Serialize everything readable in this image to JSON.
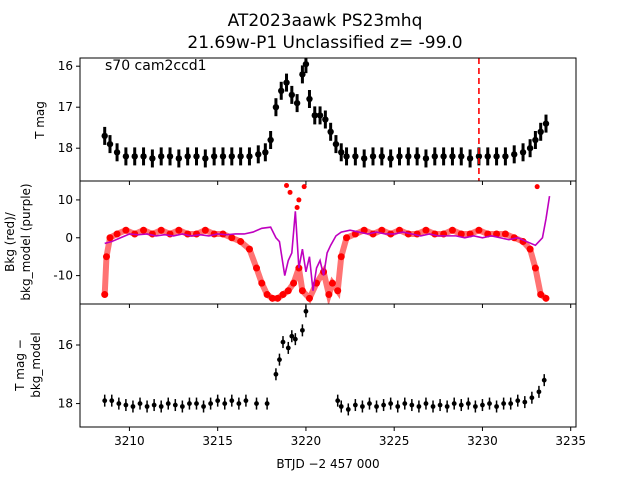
{
  "title_line1": "AT2023aawk  PS23mhq",
  "title_line2": "21.69w-P1 Unclassified z= -99.0",
  "chart_data": [
    {
      "type": "scatter",
      "panel": "top",
      "annotation": "s70 cam2ccd1",
      "ylabel": "T mag",
      "ylim": [
        18.8,
        15.8
      ],
      "xlim": [
        3207.2,
        3235.3
      ],
      "yticks": [
        16,
        17,
        18
      ],
      "vline_x": 3229.8,
      "vline_color": "#ff0000",
      "point_color": "#000000",
      "series": [
        {
          "values": [
            [
              3208.6,
              17.7
            ],
            [
              3208.9,
              17.9
            ],
            [
              3209.3,
              18.1
            ],
            [
              3209.8,
              18.2
            ],
            [
              3210.3,
              18.2
            ],
            [
              3210.8,
              18.2
            ],
            [
              3211.3,
              18.25
            ],
            [
              3211.8,
              18.2
            ],
            [
              3212.3,
              18.2
            ],
            [
              3212.8,
              18.25
            ],
            [
              3213.3,
              18.2
            ],
            [
              3213.8,
              18.2
            ],
            [
              3214.3,
              18.25
            ],
            [
              3214.8,
              18.2
            ],
            [
              3215.3,
              18.2
            ],
            [
              3215.8,
              18.2
            ],
            [
              3216.3,
              18.2
            ],
            [
              3216.8,
              18.2
            ],
            [
              3217.3,
              18.15
            ],
            [
              3217.7,
              18.1
            ],
            [
              3218.0,
              17.8
            ],
            [
              3218.3,
              17.0
            ],
            [
              3218.6,
              16.6
            ],
            [
              3218.9,
              16.4
            ],
            [
              3219.2,
              16.7
            ],
            [
              3219.5,
              16.9
            ],
            [
              3219.8,
              16.2
            ],
            [
              3220.0,
              15.95
            ],
            [
              3220.2,
              16.8
            ],
            [
              3220.5,
              17.2
            ],
            [
              3220.8,
              17.2
            ],
            [
              3221.1,
              17.3
            ],
            [
              3221.4,
              17.6
            ],
            [
              3221.7,
              17.9
            ],
            [
              3222.0,
              18.1
            ],
            [
              3222.3,
              18.2
            ],
            [
              3222.8,
              18.2
            ],
            [
              3223.3,
              18.25
            ],
            [
              3223.8,
              18.2
            ],
            [
              3224.3,
              18.2
            ],
            [
              3224.8,
              18.25
            ],
            [
              3225.3,
              18.2
            ],
            [
              3225.8,
              18.2
            ],
            [
              3226.3,
              18.2
            ],
            [
              3226.8,
              18.25
            ],
            [
              3227.3,
              18.2
            ],
            [
              3227.8,
              18.2
            ],
            [
              3228.3,
              18.2
            ],
            [
              3228.8,
              18.2
            ],
            [
              3229.3,
              18.25
            ],
            [
              3229.8,
              18.2
            ],
            [
              3230.3,
              18.2
            ],
            [
              3230.8,
              18.2
            ],
            [
              3231.3,
              18.2
            ],
            [
              3231.8,
              18.15
            ],
            [
              3232.3,
              18.1
            ],
            [
              3232.7,
              18.0
            ],
            [
              3233.0,
              17.8
            ],
            [
              3233.3,
              17.6
            ],
            [
              3233.6,
              17.4
            ]
          ]
        }
      ]
    },
    {
      "type": "line",
      "panel": "middle",
      "ylabel": "Bkg (red)/\nbkg_model (purple)",
      "ylim": [
        -17.5,
        15
      ],
      "xlim": [
        3207.2,
        3235.3
      ],
      "yticks": [
        -10,
        0,
        10
      ],
      "series": [
        {
          "color": "#ff0000",
          "values": [
            [
              3208.6,
              -15
            ],
            [
              3208.7,
              -5
            ],
            [
              3208.9,
              0
            ],
            [
              3209.3,
              1
            ],
            [
              3209.8,
              2
            ],
            [
              3210.3,
              1
            ],
            [
              3210.8,
              2
            ],
            [
              3211.3,
              1
            ],
            [
              3211.8,
              2
            ],
            [
              3212.3,
              1
            ],
            [
              3212.8,
              2
            ],
            [
              3213.3,
              1
            ],
            [
              3213.8,
              1
            ],
            [
              3214.3,
              2
            ],
            [
              3214.8,
              1
            ],
            [
              3215.3,
              1
            ],
            [
              3215.8,
              0
            ],
            [
              3216.3,
              -1
            ],
            [
              3216.8,
              -3
            ],
            [
              3217.2,
              -8
            ],
            [
              3217.5,
              -12
            ],
            [
              3217.8,
              -15
            ],
            [
              3218.1,
              -16
            ],
            [
              3218.4,
              -16
            ],
            [
              3218.7,
              -15
            ],
            [
              3219.0,
              -14
            ],
            [
              3219.3,
              -12
            ],
            [
              3219.6,
              -8
            ],
            [
              3219.8,
              -14
            ],
            [
              3220.2,
              -16
            ],
            [
              3220.6,
              -12
            ],
            [
              3221.0,
              -9
            ],
            [
              3221.3,
              -15
            ],
            [
              3221.5,
              -12
            ],
            [
              3221.8,
              -14
            ],
            [
              3222.0,
              -5
            ],
            [
              3222.3,
              0
            ],
            [
              3222.8,
              1
            ],
            [
              3223.3,
              2
            ],
            [
              3223.8,
              1
            ],
            [
              3224.3,
              2
            ],
            [
              3224.8,
              1
            ],
            [
              3225.3,
              2
            ],
            [
              3225.8,
              1
            ],
            [
              3226.3,
              1
            ],
            [
              3226.8,
              2
            ],
            [
              3227.3,
              1
            ],
            [
              3227.8,
              1
            ],
            [
              3228.3,
              2
            ],
            [
              3228.8,
              1
            ],
            [
              3229.3,
              1
            ],
            [
              3229.8,
              2
            ],
            [
              3230.3,
              1
            ],
            [
              3230.8,
              1
            ],
            [
              3231.3,
              1
            ],
            [
              3231.8,
              0
            ],
            [
              3232.3,
              -1
            ],
            [
              3232.7,
              -3
            ],
            [
              3233.0,
              -8
            ],
            [
              3233.3,
              -15
            ],
            [
              3233.6,
              -16
            ]
          ]
        },
        {
          "color": "#bf00bf",
          "values": [
            [
              3208.6,
              -1.5
            ],
            [
              3209.0,
              -1
            ],
            [
              3209.5,
              0
            ],
            [
              3210.0,
              1
            ],
            [
              3210.5,
              0.8
            ],
            [
              3211.0,
              1
            ],
            [
              3211.5,
              0.5
            ],
            [
              3212.0,
              0.8
            ],
            [
              3212.5,
              0.5
            ],
            [
              3213.0,
              1
            ],
            [
              3213.5,
              0.5
            ],
            [
              3214.0,
              0.8
            ],
            [
              3214.5,
              0.5
            ],
            [
              3215.0,
              1
            ],
            [
              3215.5,
              0.8
            ],
            [
              3216.0,
              1
            ],
            [
              3216.5,
              1
            ],
            [
              3217.0,
              1.5
            ],
            [
              3217.5,
              2.5
            ],
            [
              3218.0,
              2.8
            ],
            [
              3218.3,
              0
            ],
            [
              3218.5,
              -1
            ],
            [
              3218.8,
              -10
            ],
            [
              3219.0,
              -6
            ],
            [
              3219.2,
              -4
            ],
            [
              3219.4,
              7
            ],
            [
              3219.6,
              -8
            ],
            [
              3219.8,
              -3
            ],
            [
              3220.0,
              -9
            ],
            [
              3220.2,
              -5
            ],
            [
              3220.4,
              -14
            ],
            [
              3220.6,
              -8
            ],
            [
              3220.8,
              -6
            ],
            [
              3221.0,
              -10
            ],
            [
              3221.2,
              -4
            ],
            [
              3221.4,
              -2
            ],
            [
              3221.7,
              0.5
            ],
            [
              3222.0,
              1.5
            ],
            [
              3222.5,
              2
            ],
            [
              3223.0,
              1.5
            ],
            [
              3223.5,
              1
            ],
            [
              3224.0,
              1.5
            ],
            [
              3224.5,
              1
            ],
            [
              3225.0,
              1
            ],
            [
              3225.5,
              1.5
            ],
            [
              3226.0,
              1
            ],
            [
              3226.5,
              0.5
            ],
            [
              3227.0,
              1
            ],
            [
              3227.5,
              0.5
            ],
            [
              3228.0,
              0.5
            ],
            [
              3228.5,
              0.5
            ],
            [
              3229.0,
              0
            ],
            [
              3229.5,
              0.5
            ],
            [
              3230.0,
              0
            ],
            [
              3230.5,
              0.5
            ],
            [
              3231.0,
              0
            ],
            [
              3231.5,
              -0.5
            ],
            [
              3232.0,
              0
            ],
            [
              3232.5,
              -1
            ],
            [
              3233.0,
              -2
            ],
            [
              3233.2,
              -1
            ],
            [
              3233.4,
              0
            ],
            [
              3233.6,
              5
            ],
            [
              3233.8,
              11
            ]
          ]
        }
      ],
      "extra_points": [
        {
          "color": "#ff0000",
          "values": [
            [
              3219.1,
              12
            ],
            [
              3219.9,
              13.5
            ],
            [
              3218.9,
              13.8
            ],
            [
              3219.6,
              10
            ],
            [
              3219.5,
              8
            ],
            [
              3233.1,
              13.5
            ]
          ]
        }
      ]
    },
    {
      "type": "scatter",
      "panel": "bottom",
      "ylabel": "T mag −\nbkg_model",
      "ylim": [
        18.8,
        14.6
      ],
      "xlim": [
        3207.2,
        3235.3
      ],
      "yticks": [
        16,
        18
      ],
      "point_color": "#000000",
      "series": [
        {
          "values": [
            [
              3208.6,
              17.9
            ],
            [
              3209.0,
              17.9
            ],
            [
              3209.4,
              18.0
            ],
            [
              3209.8,
              18.05
            ],
            [
              3210.2,
              18.1
            ],
            [
              3210.6,
              18.0
            ],
            [
              3211.0,
              18.1
            ],
            [
              3211.4,
              18.05
            ],
            [
              3211.8,
              18.1
            ],
            [
              3212.2,
              18.0
            ],
            [
              3212.6,
              18.05
            ],
            [
              3213.0,
              18.1
            ],
            [
              3213.4,
              18.0
            ],
            [
              3213.8,
              18.0
            ],
            [
              3214.2,
              18.1
            ],
            [
              3214.6,
              18.0
            ],
            [
              3215.0,
              17.9
            ],
            [
              3215.4,
              18.0
            ],
            [
              3215.8,
              17.9
            ],
            [
              3216.2,
              18.0
            ],
            [
              3216.6,
              17.9
            ],
            [
              3217.2,
              18.0
            ],
            [
              3217.8,
              18.0
            ],
            [
              3218.3,
              17.0
            ],
            [
              3218.5,
              16.5
            ],
            [
              3218.7,
              15.9
            ],
            [
              3219.0,
              16.1
            ],
            [
              3219.2,
              15.7
            ],
            [
              3219.4,
              15.8
            ],
            [
              3219.8,
              15.5
            ],
            [
              3220.0,
              14.85
            ],
            [
              3221.8,
              17.9
            ],
            [
              3222.0,
              18.1
            ],
            [
              3222.4,
              18.2
            ],
            [
              3222.8,
              18.05
            ],
            [
              3223.2,
              18.1
            ],
            [
              3223.6,
              18.0
            ],
            [
              3224.0,
              18.1
            ],
            [
              3224.4,
              18.05
            ],
            [
              3224.8,
              18.0
            ],
            [
              3225.2,
              18.1
            ],
            [
              3225.6,
              18.0
            ],
            [
              3226.0,
              18.05
            ],
            [
              3226.4,
              18.1
            ],
            [
              3226.8,
              18.0
            ],
            [
              3227.2,
              18.1
            ],
            [
              3227.6,
              18.05
            ],
            [
              3228.0,
              18.1
            ],
            [
              3228.4,
              18.0
            ],
            [
              3228.8,
              18.05
            ],
            [
              3229.2,
              18.0
            ],
            [
              3229.6,
              18.1
            ],
            [
              3230.0,
              18.05
            ],
            [
              3230.4,
              18.0
            ],
            [
              3230.8,
              18.1
            ],
            [
              3231.2,
              18.0
            ],
            [
              3231.6,
              18.0
            ],
            [
              3232.0,
              17.9
            ],
            [
              3232.4,
              17.95
            ],
            [
              3232.8,
              17.8
            ],
            [
              3233.2,
              17.6
            ],
            [
              3233.5,
              17.2
            ]
          ]
        }
      ]
    }
  ],
  "x_axis": {
    "label": "BTJD −2 457 000",
    "ticks": [
      3210,
      3215,
      3220,
      3225,
      3230,
      3235
    ]
  }
}
